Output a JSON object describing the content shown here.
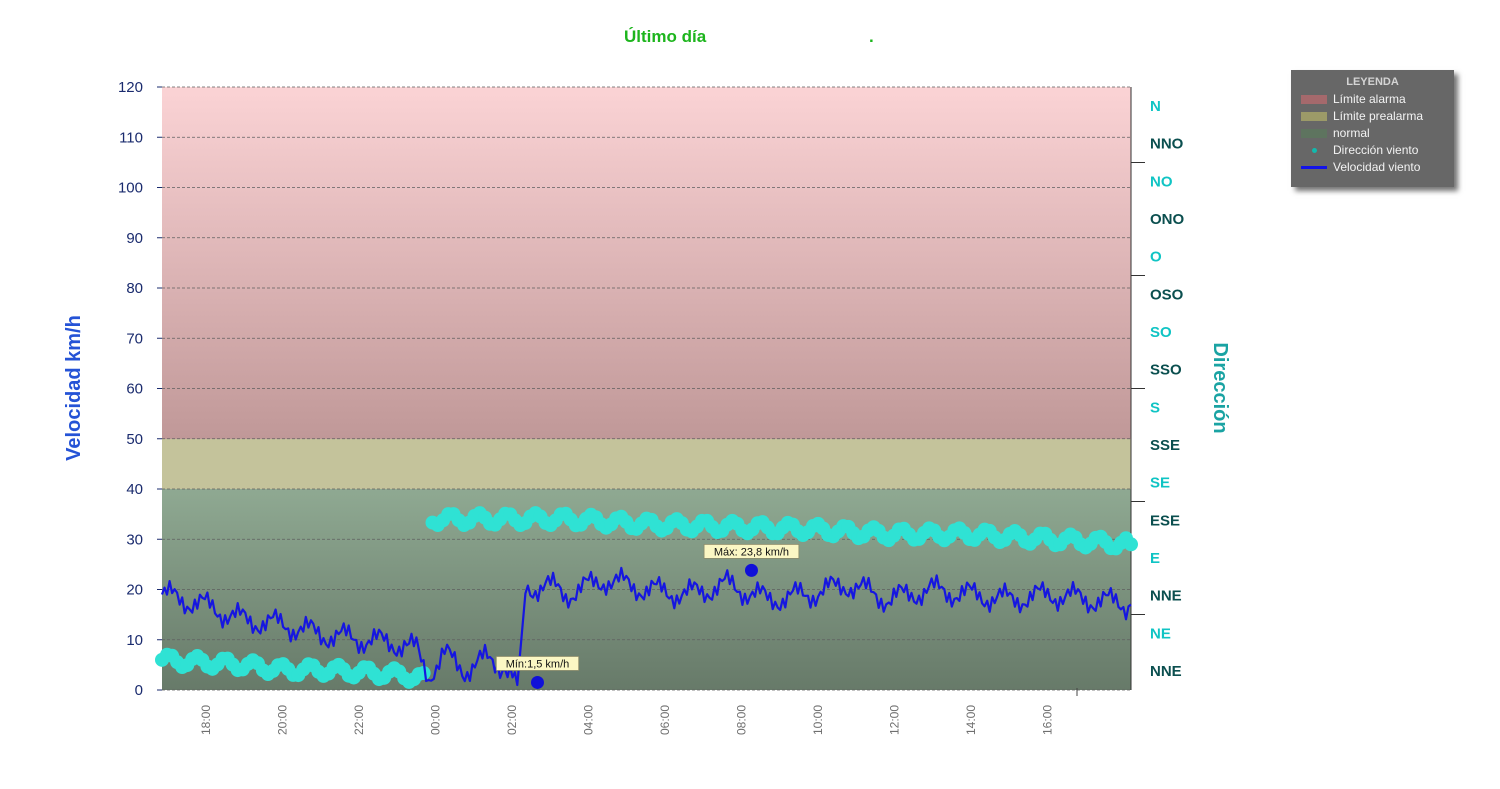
{
  "chart_data": {
    "type": "line",
    "title": "Último día",
    "title_suffix": ".",
    "ylabel_left": "Velocidad km/h",
    "ylabel_right": "Dirección",
    "ylim": [
      0,
      120
    ],
    "yticks": [
      0,
      10,
      20,
      30,
      40,
      50,
      60,
      70,
      80,
      90,
      100,
      110,
      120
    ],
    "direction_ticks": [
      "NNE",
      "NE",
      "NNE",
      "E",
      "ESE",
      "SE",
      "SSE",
      "S",
      "SSO",
      "SO",
      "OSO",
      "O",
      "ONO",
      "NO",
      "NNO",
      "N"
    ],
    "x_tick_labels": [
      "18:00",
      "20:00",
      "22:00",
      "00:00",
      "02:00",
      "04:00",
      "06:00",
      "08:00",
      "10:00",
      "12:00",
      "14:00",
      "16:00"
    ],
    "bands": [
      {
        "name": "Límite alarma",
        "from": 50,
        "to": 120,
        "color_top": "#fbd3d5",
        "color_bottom": "#c09898"
      },
      {
        "name": "Límite prealarma",
        "from": 40,
        "to": 50,
        "color_top": "#c4c39b",
        "color_bottom": "#c4c39b"
      },
      {
        "name": "normal",
        "from": 0,
        "to": 40,
        "color_top": "#8fa992",
        "color_bottom": "#677a69"
      }
    ],
    "series": [
      {
        "name": "Velocidad viento",
        "type": "line",
        "color": "#1616e0",
        "x": [
          0,
          1,
          2,
          3,
          4,
          5,
          6,
          6.3,
          6.6,
          7,
          7.5,
          8,
          8.5,
          8.8,
          9,
          9.5,
          10,
          11,
          12,
          13,
          14,
          15,
          16,
          17,
          18,
          19,
          20,
          21,
          22,
          23,
          24
        ],
        "values": [
          19,
          17,
          14,
          13,
          11,
          10,
          9,
          8,
          3,
          7,
          4,
          6,
          5,
          1,
          20,
          21,
          19,
          22,
          20,
          19,
          21,
          18,
          19,
          21,
          18,
          20,
          19,
          18,
          19,
          18,
          17
        ]
      },
      {
        "name": "Dirección viento",
        "type": "scatter",
        "color": "#2fe2d4",
        "x": [
          0,
          1,
          2,
          3,
          4,
          5,
          6,
          6.6,
          6.7,
          8,
          10,
          12,
          14,
          16,
          18,
          20,
          22,
          24
        ],
        "values": [
          6,
          5.5,
          5,
          4,
          4,
          3.5,
          3,
          2,
          34,
          34,
          34,
          33,
          32.5,
          32,
          31,
          31,
          30,
          29
        ]
      }
    ],
    "annotations": [
      {
        "label": "Máx: 23,8 km/h",
        "x": 14.6,
        "y": 23.8
      },
      {
        "label": "Mín:1,5 km/h",
        "x": 9.3,
        "y": 1.5
      }
    ],
    "grid": true,
    "legend": {
      "title": "LEYENDA",
      "placement": "top-right",
      "items": [
        {
          "label": "Límite alarma",
          "kind": "area",
          "color": "#a5696c"
        },
        {
          "label": "Límite prealarma",
          "kind": "area",
          "color": "#9c9a68"
        },
        {
          "label": "normal",
          "kind": "area",
          "color": "#5e745f"
        },
        {
          "label": "Dirección viento",
          "kind": "point",
          "color": "#12b9ad"
        },
        {
          "label": "Velocidad viento",
          "kind": "line",
          "color": "#1313e8"
        }
      ]
    }
  }
}
